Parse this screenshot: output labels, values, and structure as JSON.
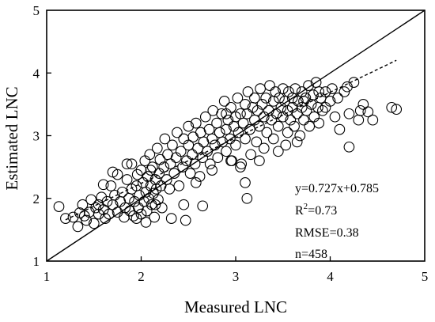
{
  "chart_data": {
    "type": "scatter",
    "xlabel": "Measured LNC",
    "ylabel": "Estimated LNC",
    "xlim": [
      1,
      5
    ],
    "ylim": [
      1,
      5
    ],
    "x_ticks": [
      "1",
      "2",
      "3",
      "4",
      "5"
    ],
    "y_ticks": [
      "1",
      "2",
      "3",
      "4",
      "5"
    ],
    "grid": false,
    "marker": "open-circle",
    "reference_line": {
      "name": "1:1",
      "style": "solid",
      "points": [
        [
          1,
          1
        ],
        [
          5,
          5
        ]
      ]
    },
    "regression_line": {
      "style": "dashed",
      "slope": 0.727,
      "intercept": 0.785,
      "x_range": [
        1.2,
        4.7
      ]
    },
    "annotations": {
      "equation": "y=0.727x+0.785",
      "r2_prefix": "R",
      "r2_sup": "2",
      "r2_value": "=0.73",
      "rmse": "RMSE=0.38",
      "n": "n=458"
    },
    "points": [
      [
        1.13,
        1.87
      ],
      [
        1.2,
        1.68
      ],
      [
        1.28,
        1.7
      ],
      [
        1.33,
        1.55
      ],
      [
        1.35,
        1.77
      ],
      [
        1.38,
        1.9
      ],
      [
        1.4,
        1.72
      ],
      [
        1.45,
        1.78
      ],
      [
        1.47,
        1.98
      ],
      [
        1.5,
        1.6
      ],
      [
        1.52,
        1.85
      ],
      [
        1.55,
        1.75
      ],
      [
        1.58,
        2.02
      ],
      [
        1.6,
        1.82
      ],
      [
        1.62,
        1.68
      ],
      [
        1.64,
        1.95
      ],
      [
        1.66,
        1.75
      ],
      [
        1.68,
        2.2
      ],
      [
        1.7,
        1.9
      ],
      [
        1.72,
        2.05
      ],
      [
        1.75,
        1.78
      ],
      [
        1.75,
        2.38
      ],
      [
        1.78,
        1.95
      ],
      [
        1.8,
        2.1
      ],
      [
        1.82,
        1.7
      ],
      [
        1.83,
        1.85
      ],
      [
        1.85,
        2.3
      ],
      [
        1.87,
        2.0
      ],
      [
        1.88,
        1.8
      ],
      [
        1.9,
        2.15
      ],
      [
        1.9,
        2.55
      ],
      [
        1.92,
        1.72
      ],
      [
        1.93,
        1.95
      ],
      [
        1.95,
        2.2
      ],
      [
        1.96,
        2.38
      ],
      [
        1.97,
        1.85
      ],
      [
        1.98,
        2.05
      ],
      [
        2.0,
        1.75
      ],
      [
        2.0,
        2.45
      ],
      [
        2.02,
        2.25
      ],
      [
        2.03,
        1.95
      ],
      [
        2.04,
        2.6
      ],
      [
        2.05,
        2.1
      ],
      [
        2.06,
        1.8
      ],
      [
        2.07,
        2.35
      ],
      [
        2.08,
        2.0
      ],
      [
        2.09,
        2.7
      ],
      [
        2.1,
        2.2
      ],
      [
        2.11,
        1.9
      ],
      [
        2.12,
        2.5
      ],
      [
        2.13,
        2.08
      ],
      [
        2.14,
        1.7
      ],
      [
        2.15,
        2.3
      ],
      [
        2.16,
        2.15
      ],
      [
        2.17,
        2.8
      ],
      [
        2.18,
        1.98
      ],
      [
        2.19,
        2.4
      ],
      [
        2.2,
        2.62
      ],
      [
        2.21,
        2.2
      ],
      [
        2.22,
        1.85
      ],
      [
        2.24,
        2.5
      ],
      [
        2.25,
        2.95
      ],
      [
        2.27,
        2.3
      ],
      [
        2.28,
        2.7
      ],
      [
        2.3,
        2.15
      ],
      [
        2.31,
        2.55
      ],
      [
        2.33,
        2.85
      ],
      [
        2.35,
        2.4
      ],
      [
        2.37,
        2.65
      ],
      [
        2.38,
        3.05
      ],
      [
        2.4,
        2.2
      ],
      [
        2.42,
        2.75
      ],
      [
        2.44,
        2.5
      ],
      [
        2.45,
        2.95
      ],
      [
        2.47,
        1.65
      ],
      [
        2.48,
        2.6
      ],
      [
        2.5,
        2.85
      ],
      [
        2.5,
        3.15
      ],
      [
        2.52,
        2.4
      ],
      [
        2.54,
        2.7
      ],
      [
        2.55,
        2.98
      ],
      [
        2.57,
        2.55
      ],
      [
        2.58,
        3.2
      ],
      [
        2.6,
        2.8
      ],
      [
        2.62,
        2.35
      ],
      [
        2.63,
        3.05
      ],
      [
        2.65,
        2.65
      ],
      [
        2.66,
        2.9
      ],
      [
        2.68,
        3.3
      ],
      [
        2.7,
        2.75
      ],
      [
        2.72,
        3.1
      ],
      [
        2.73,
        2.55
      ],
      [
        2.75,
        2.95
      ],
      [
        2.76,
        3.4
      ],
      [
        2.78,
        2.85
      ],
      [
        2.8,
        3.2
      ],
      [
        2.81,
        2.65
      ],
      [
        2.83,
        3.05
      ],
      [
        2.85,
        3.35
      ],
      [
        2.86,
        2.9
      ],
      [
        2.88,
        3.55
      ],
      [
        2.9,
        3.1
      ],
      [
        2.9,
        2.75
      ],
      [
        2.92,
        3.25
      ],
      [
        2.94,
        2.95
      ],
      [
        2.95,
        3.45
      ],
      [
        2.96,
        2.6
      ],
      [
        2.98,
        3.15
      ],
      [
        3.0,
        3.3
      ],
      [
        3.0,
        2.85
      ],
      [
        3.02,
        3.6
      ],
      [
        3.03,
        3.05
      ],
      [
        3.05,
        3.35
      ],
      [
        3.06,
        2.55
      ],
      [
        3.08,
        3.2
      ],
      [
        3.1,
        3.5
      ],
      [
        3.1,
        2.95
      ],
      [
        3.12,
        3.35
      ],
      [
        3.13,
        3.7
      ],
      [
        3.15,
        3.1
      ],
      [
        3.16,
        2.7
      ],
      [
        3.18,
        3.45
      ],
      [
        3.2,
        3.25
      ],
      [
        3.2,
        3.6
      ],
      [
        3.22,
        2.9
      ],
      [
        3.23,
        3.4
      ],
      [
        3.25,
        3.15
      ],
      [
        3.26,
        3.75
      ],
      [
        3.28,
        3.5
      ],
      [
        3.3,
        3.3
      ],
      [
        3.3,
        2.8
      ],
      [
        3.32,
        3.6
      ],
      [
        3.33,
        3.05
      ],
      [
        3.35,
        3.4
      ],
      [
        3.36,
        3.8
      ],
      [
        3.38,
        3.25
      ],
      [
        3.4,
        3.55
      ],
      [
        3.4,
        2.95
      ],
      [
        3.42,
        3.7
      ],
      [
        3.43,
        3.35
      ],
      [
        3.45,
        3.15
      ],
      [
        3.46,
        3.6
      ],
      [
        3.48,
        3.45
      ],
      [
        3.5,
        3.75
      ],
      [
        3.5,
        3.3
      ],
      [
        3.52,
        3.55
      ],
      [
        3.53,
        2.85
      ],
      [
        3.55,
        3.4
      ],
      [
        3.56,
        3.7
      ],
      [
        3.58,
        3.25
      ],
      [
        3.6,
        3.6
      ],
      [
        3.6,
        3.45
      ],
      [
        3.62,
        3.15
      ],
      [
        3.63,
        3.75
      ],
      [
        3.65,
        3.35
      ],
      [
        3.66,
        3.55
      ],
      [
        3.68,
        3.0
      ],
      [
        3.7,
        3.45
      ],
      [
        3.7,
        3.7
      ],
      [
        3.72,
        3.25
      ],
      [
        3.74,
        3.6
      ],
      [
        3.75,
        3.4
      ],
      [
        3.77,
        3.8
      ],
      [
        3.78,
        3.15
      ],
      [
        3.8,
        3.5
      ],
      [
        3.82,
        3.65
      ],
      [
        3.83,
        3.3
      ],
      [
        3.85,
        3.85
      ],
      [
        3.87,
        3.45
      ],
      [
        3.88,
        3.2
      ],
      [
        3.9,
        3.6
      ],
      [
        3.92,
        3.4
      ],
      [
        3.95,
        3.7
      ],
      [
        4.0,
        3.55
      ],
      [
        4.05,
        3.3
      ],
      [
        4.1,
        3.1
      ],
      [
        4.15,
        3.7
      ],
      [
        4.18,
        3.78
      ],
      [
        4.2,
        2.82
      ],
      [
        4.2,
        3.35
      ],
      [
        4.25,
        3.85
      ],
      [
        4.3,
        3.25
      ],
      [
        4.32,
        3.4
      ],
      [
        4.35,
        3.5
      ],
      [
        4.4,
        3.38
      ],
      [
        4.45,
        3.25
      ],
      [
        4.65,
        3.45
      ],
      [
        4.7,
        3.42
      ],
      [
        1.95,
        1.68
      ],
      [
        2.05,
        1.62
      ],
      [
        2.15,
        1.9
      ],
      [
        2.32,
        1.68
      ],
      [
        2.45,
        1.9
      ],
      [
        2.65,
        1.88
      ],
      [
        2.58,
        2.25
      ],
      [
        2.75,
        2.45
      ],
      [
        2.95,
        2.6
      ],
      [
        3.05,
        2.5
      ],
      [
        3.1,
        2.25
      ],
      [
        3.12,
        2.0
      ],
      [
        2.1,
        2.45
      ],
      [
        1.85,
        2.55
      ],
      [
        1.7,
        2.42
      ],
      [
        1.6,
        2.22
      ],
      [
        1.55,
        1.9
      ],
      [
        1.42,
        1.65
      ],
      [
        2.9,
        3.35
      ],
      [
        3.55,
        3.05
      ],
      [
        3.25,
        2.6
      ],
      [
        3.45,
        2.75
      ],
      [
        3.65,
        2.9
      ],
      [
        3.72,
        3.55
      ],
      [
        3.95,
        3.45
      ],
      [
        4.02,
        3.75
      ],
      [
        4.08,
        3.6
      ],
      [
        3.88,
        3.7
      ]
    ]
  }
}
